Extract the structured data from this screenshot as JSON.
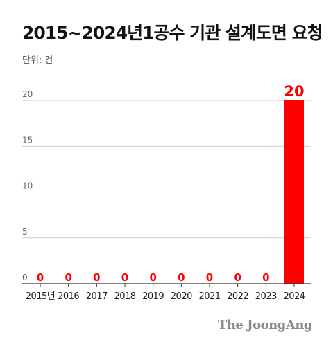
{
  "header": {
    "title": "2015~2024년1공수 기관 설계도면 요청",
    "unit": "단위: 건"
  },
  "chart_data": {
    "type": "bar",
    "categories": [
      "2015년",
      "2016",
      "2017",
      "2018",
      "2019",
      "2020",
      "2021",
      "2022",
      "2023",
      "2024"
    ],
    "values": [
      0,
      0,
      0,
      0,
      0,
      0,
      0,
      0,
      0,
      20
    ],
    "data_labels": [
      "0",
      "0",
      "0",
      "0",
      "0",
      "0",
      "0",
      "0",
      "0",
      "20"
    ],
    "ylim": [
      0,
      20
    ],
    "yticks": [
      0,
      5,
      10,
      15,
      20
    ],
    "ytick_labels": [
      "0",
      "5",
      "10",
      "15",
      "20"
    ],
    "grid": true,
    "colors": {
      "bar": "#ff0000",
      "label": "#ff0000",
      "grid": "#cccccc",
      "axis": "#333333"
    }
  },
  "footer": {
    "credit": "The JoongAng"
  }
}
